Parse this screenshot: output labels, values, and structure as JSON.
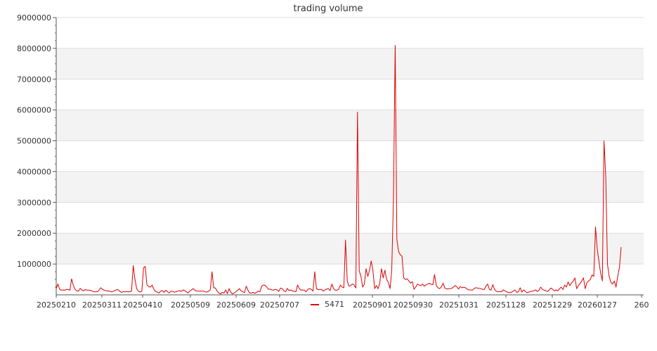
{
  "chart_data": {
    "type": "line",
    "title": "trading volume",
    "xlabel": "",
    "ylabel": "",
    "ylim": [
      0,
      9000000
    ],
    "y_ticks": [
      1000000,
      2000000,
      3000000,
      4000000,
      5000000,
      6000000,
      7000000,
      8000000,
      9000000
    ],
    "x_tick_labels": [
      "20250210",
      "20250311",
      "20250410",
      "20250509",
      "20250609",
      "20250707",
      "20250901",
      "20250930",
      "20251031",
      "20251128",
      "20251229",
      "20260127",
      "260"
    ],
    "grid": "horizontal bands",
    "legend": {
      "position": "bottom-center",
      "entries": [
        {
          "name": "5471",
          "color": "#dd0000"
        }
      ]
    },
    "series": [
      {
        "name": "5471",
        "color": "#dd0000",
        "values": [
          200000,
          350000,
          180000,
          150000,
          160000,
          150000,
          180000,
          170000,
          150000,
          520000,
          300000,
          180000,
          130000,
          120000,
          210000,
          160000,
          130000,
          170000,
          150000,
          150000,
          150000,
          120000,
          100000,
          100000,
          100000,
          150000,
          230000,
          180000,
          150000,
          130000,
          130000,
          120000,
          100000,
          110000,
          130000,
          160000,
          170000,
          120000,
          80000,
          100000,
          100000,
          110000,
          100000,
          100000,
          120000,
          950000,
          500000,
          200000,
          120000,
          90000,
          120000,
          880000,
          920000,
          320000,
          270000,
          250000,
          320000,
          180000,
          110000,
          90000,
          60000,
          120000,
          140000,
          80000,
          150000,
          100000,
          60000,
          120000,
          110000,
          90000,
          100000,
          120000,
          140000,
          110000,
          160000,
          140000,
          100000,
          60000,
          120000,
          160000,
          200000,
          150000,
          120000,
          120000,
          120000,
          120000,
          120000,
          100000,
          90000,
          120000,
          160000,
          750000,
          230000,
          220000,
          120000,
          60000,
          30000,
          80000,
          60000,
          160000,
          40000,
          200000,
          80000,
          30000,
          60000,
          100000,
          150000,
          200000,
          130000,
          100000,
          70000,
          280000,
          150000,
          60000,
          60000,
          80000,
          50000,
          80000,
          120000,
          100000,
          280000,
          320000,
          310000,
          250000,
          180000,
          190000,
          160000,
          150000,
          180000,
          160000,
          110000,
          220000,
          200000,
          130000,
          100000,
          210000,
          140000,
          160000,
          120000,
          120000,
          100000,
          320000,
          200000,
          150000,
          160000,
          150000,
          100000,
          180000,
          200000,
          180000,
          120000,
          750000,
          200000,
          170000,
          170000,
          180000,
          120000,
          160000,
          190000,
          200000,
          140000,
          350000,
          200000,
          150000,
          150000,
          180000,
          320000,
          250000,
          230000,
          1780000,
          450000,
          280000,
          300000,
          350000,
          320000,
          220000,
          5930000,
          780000,
          600000,
          250000,
          350000,
          850000,
          600000,
          800000,
          1100000,
          800000,
          200000,
          300000,
          200000,
          380000,
          850000,
          550000,
          800000,
          500000,
          400000,
          200000,
          800000,
          3200000,
          8100000,
          1800000,
          1400000,
          1300000,
          1250000,
          550000,
          500000,
          520000,
          450000,
          380000,
          430000,
          180000,
          250000,
          350000,
          320000,
          300000,
          350000,
          280000,
          320000,
          350000,
          380000,
          340000,
          330000,
          660000,
          300000,
          230000,
          200000,
          260000,
          380000,
          220000,
          190000,
          200000,
          200000,
          210000,
          250000,
          300000,
          260000,
          190000,
          270000,
          230000,
          250000,
          230000,
          190000,
          160000,
          160000,
          150000,
          200000,
          230000,
          220000,
          210000,
          200000,
          180000,
          170000,
          280000,
          350000,
          180000,
          150000,
          330000,
          180000,
          120000,
          100000,
          110000,
          100000,
          160000,
          130000,
          100000,
          80000,
          70000,
          90000,
          120000,
          160000,
          80000,
          100000,
          230000,
          90000,
          160000,
          110000,
          70000,
          90000,
          110000,
          120000,
          130000,
          160000,
          110000,
          150000,
          250000,
          180000,
          150000,
          130000,
          110000,
          160000,
          220000,
          180000,
          130000,
          160000,
          130000,
          200000,
          250000,
          170000,
          320000,
          250000,
          420000,
          300000,
          380000,
          450000,
          550000,
          200000,
          300000,
          370000,
          450000,
          550000,
          200000,
          400000,
          450000,
          500000,
          650000,
          600000,
          2200000,
          1500000,
          1100000,
          700000,
          450000,
          5000000,
          3800000,
          1000000,
          600000,
          400000,
          350000,
          450000,
          250000,
          600000,
          900000,
          1550000
        ]
      }
    ]
  }
}
